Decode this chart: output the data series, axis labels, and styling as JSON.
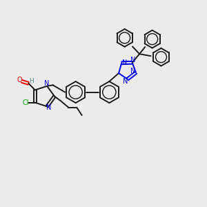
{
  "background_color": "#ebebeb",
  "bond_color": "#1a1a1a",
  "n_color": "#0000ee",
  "o_color": "#ee0000",
  "cl_color": "#00aa00",
  "h_color": "#448888",
  "figsize": [
    3.0,
    3.0
  ],
  "dpi": 100,
  "xlim": [
    0,
    10
  ],
  "ylim": [
    0,
    10
  ]
}
